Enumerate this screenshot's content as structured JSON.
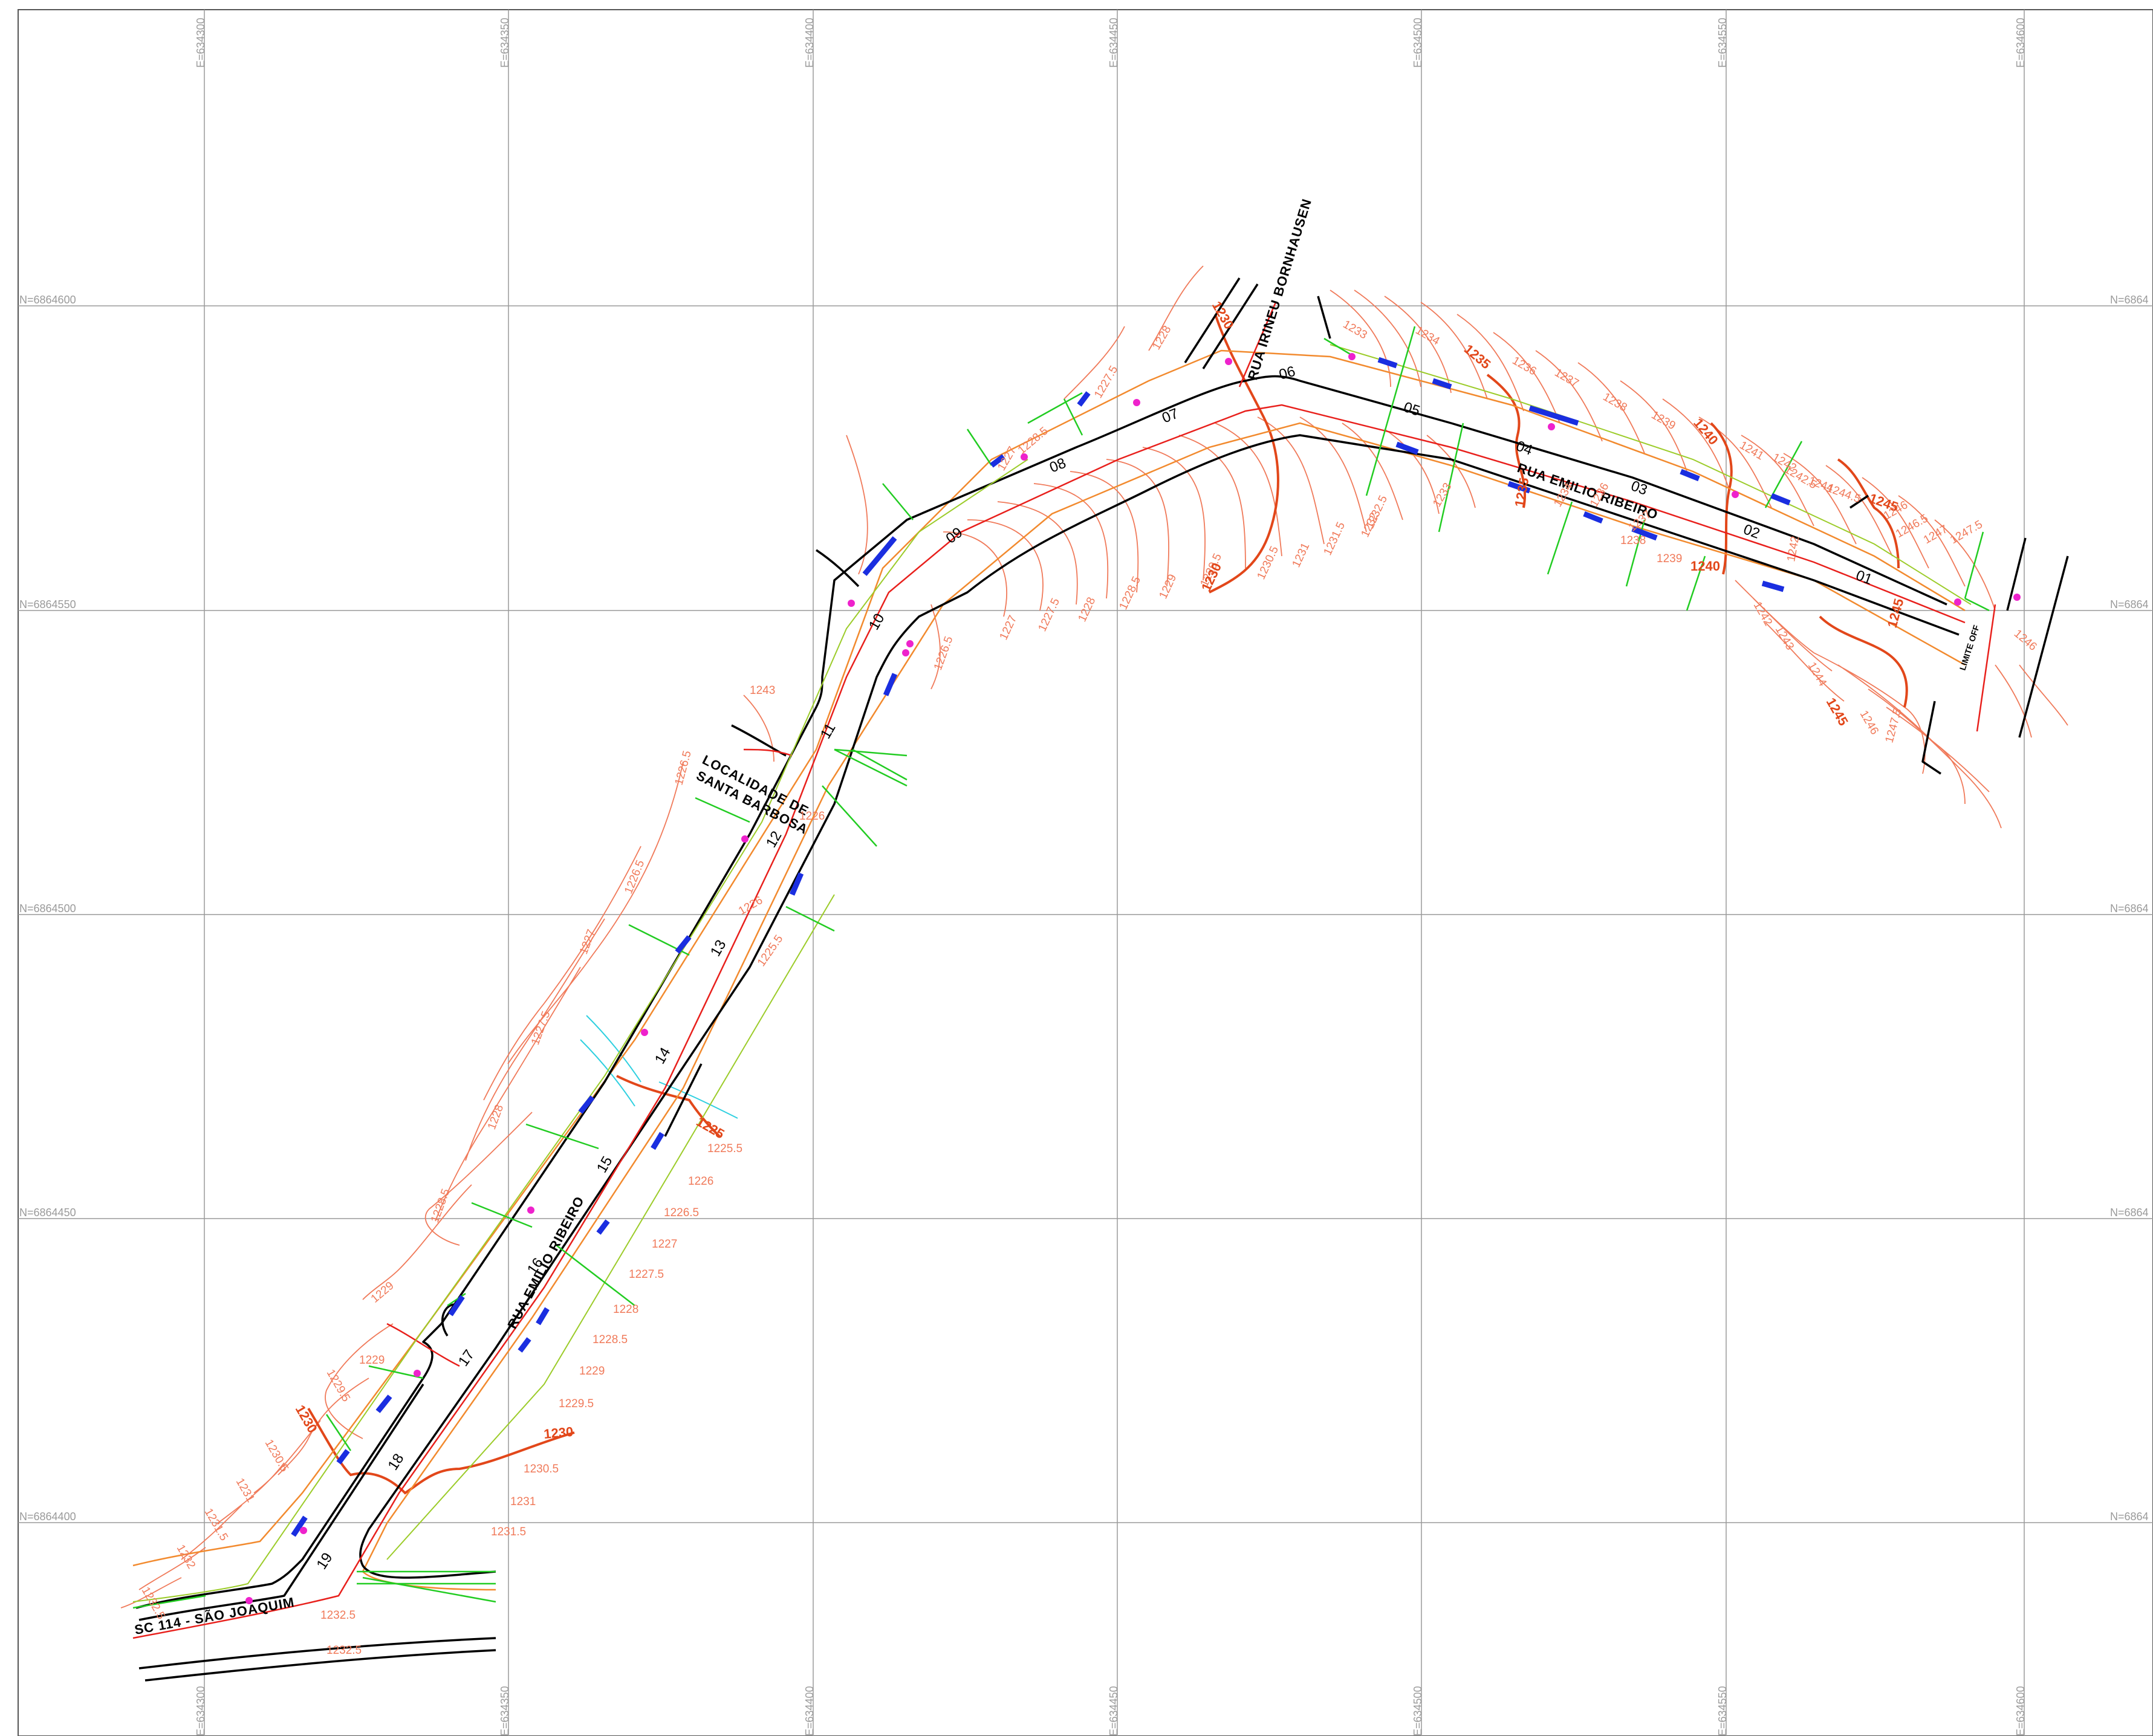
{
  "grid": {
    "easting_labels": [
      "E=634300",
      "E=634350",
      "E=634400",
      "E=634450",
      "E=634500",
      "E=634550",
      "E=634600"
    ],
    "northing_labels_left": [
      "N=6864600",
      "N=6864550",
      "N=6864500",
      "N=6864450",
      "N=6864400"
    ],
    "northing_labels_right": [
      "N=6864",
      "N=6864",
      "N=6864",
      "N=6864",
      "N=6864"
    ]
  },
  "streets": {
    "main_a": "RUA EMILIO RIBEIRO",
    "main_b": "RUA EMILIO RIBEIRO",
    "irineu": "RUA IRINEU BORNHAUSEN",
    "sc114": "SC 114 - SÃO JOAQUIM",
    "locality_line1": "LOCALIDADE DE",
    "locality_line2": "SANTA BARBOSA",
    "end_label": "LIMITE OFF"
  },
  "stations": [
    "01",
    "02",
    "03",
    "04",
    "05",
    "06",
    "07",
    "08",
    "09",
    "10",
    "11",
    "12",
    "13",
    "14",
    "15",
    "16",
    "17",
    "18",
    "19"
  ],
  "contour_labels": [
    "1225",
    "1225.5",
    "1226",
    "1226.5",
    "1227",
    "1227.5",
    "1228",
    "1228.5",
    "1229",
    "1229.5",
    "1230",
    "1230.5",
    "1231",
    "1231.5",
    "1232",
    "1232.5",
    "1233",
    "1234",
    "1235",
    "1236",
    "1237",
    "1238",
    "1239",
    "1240",
    "1241",
    "1242",
    "1242.5",
    "1243",
    "1244",
    "1244.5",
    "1245",
    "1246",
    "1246.5",
    "1247",
    "1247.5"
  ],
  "colors": {
    "grid": "#9a9a9a",
    "road_edge": "#000000",
    "road_axis": "#e8201c",
    "offset": "#f28a2e",
    "contour": "#f07a5a",
    "major_contour": "#e2471a",
    "section": "#22cc22",
    "drainage": "#1a2ee0",
    "stream": "#2fd0e0",
    "node": "#ee22cc"
  }
}
